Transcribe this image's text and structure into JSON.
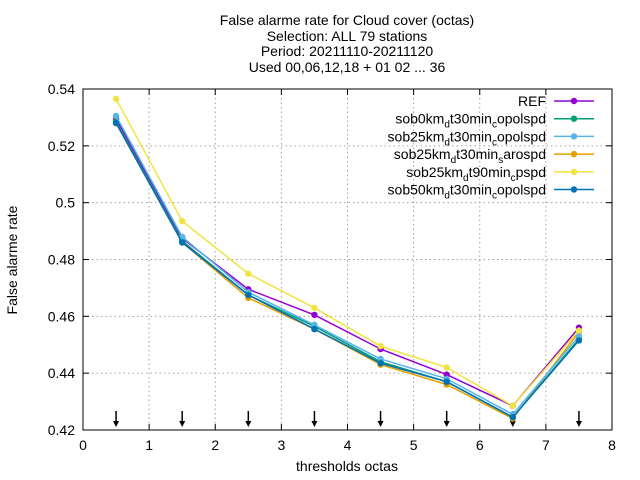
{
  "chart_data": {
    "type": "line",
    "title_lines": [
      "False alarme rate  for Cloud cover (octas)",
      "Selection: ALL     79 stations",
      "Period: 20211110-20211120",
      "Used 00,06,12,18 + 01 02 ... 36"
    ],
    "xlabel": "thresholds octas",
    "ylabel": "False alarme rate",
    "xlim": [
      0,
      8
    ],
    "ylim": [
      0.42,
      0.54
    ],
    "x_ticks": [
      0,
      1,
      2,
      3,
      4,
      5,
      6,
      7,
      8
    ],
    "y_ticks": [
      0.42,
      0.44,
      0.46,
      0.48,
      0.5,
      0.52,
      0.54
    ],
    "grid": true,
    "legend_position": "top-right",
    "x": [
      0.5,
      1.5,
      2.5,
      3.5,
      4.5,
      5.5,
      6.5,
      7.5
    ],
    "series": [
      {
        "name": "REF",
        "name_parts": [
          [
            "REF",
            ""
          ]
        ],
        "color": "#9400d3",
        "values": [
          0.5295,
          0.4875,
          0.4695,
          0.4605,
          0.4485,
          0.4395,
          0.4285,
          0.456
        ]
      },
      {
        "name": "sob0km_d t30min_c opolspd",
        "name_parts": [
          [
            "sob0km",
            ""
          ],
          [
            "d",
            "sub"
          ],
          [
            "t30min",
            ""
          ],
          [
            "c",
            "sub"
          ],
          [
            "opolspd",
            ""
          ]
        ],
        "color": "#009e73",
        "values": [
          0.5285,
          0.4865,
          0.4675,
          0.4565,
          0.444,
          0.437,
          0.4245,
          0.452
        ]
      },
      {
        "name": "sob25km_d t30min_c opolspd",
        "name_parts": [
          [
            "sob25km",
            ""
          ],
          [
            "d",
            "sub"
          ],
          [
            "t30min",
            ""
          ],
          [
            "c",
            "sub"
          ],
          [
            "opolspd",
            ""
          ]
        ],
        "color": "#56b4e9",
        "values": [
          0.5305,
          0.488,
          0.4685,
          0.457,
          0.445,
          0.438,
          0.4255,
          0.453
        ]
      },
      {
        "name": "sob25km_d t30min_s arospd",
        "name_parts": [
          [
            "sob25km",
            ""
          ],
          [
            "d",
            "sub"
          ],
          [
            "t30min",
            ""
          ],
          [
            "s",
            "sub"
          ],
          [
            "arospd",
            ""
          ]
        ],
        "color": "#e69f00",
        "values": [
          0.528,
          0.486,
          0.4665,
          0.4555,
          0.443,
          0.436,
          0.424,
          0.4545
        ]
      },
      {
        "name": "sob25km_d t90min_c pspd",
        "name_parts": [
          [
            "sob25km",
            ""
          ],
          [
            "d",
            "sub"
          ],
          [
            "t90min",
            ""
          ],
          [
            "c",
            "sub"
          ],
          [
            "pspd",
            ""
          ]
        ],
        "color": "#f0e442",
        "values": [
          0.5365,
          0.4935,
          0.475,
          0.463,
          0.4495,
          0.442,
          0.4285,
          0.455
        ]
      },
      {
        "name": "sob50km_d t30min_c opolspd",
        "name_parts": [
          [
            "sob50km",
            ""
          ],
          [
            "d",
            "sub"
          ],
          [
            "t30min",
            ""
          ],
          [
            "c",
            "sub"
          ],
          [
            "opolspd",
            ""
          ]
        ],
        "color": "#0072b2",
        "values": [
          0.528,
          0.486,
          0.4675,
          0.4555,
          0.4435,
          0.437,
          0.4245,
          0.4515
        ]
      }
    ],
    "threshold_markers_x": [
      0.5,
      1.5,
      2.5,
      3.5,
      4.5,
      5.5,
      6.5,
      7.5
    ]
  }
}
